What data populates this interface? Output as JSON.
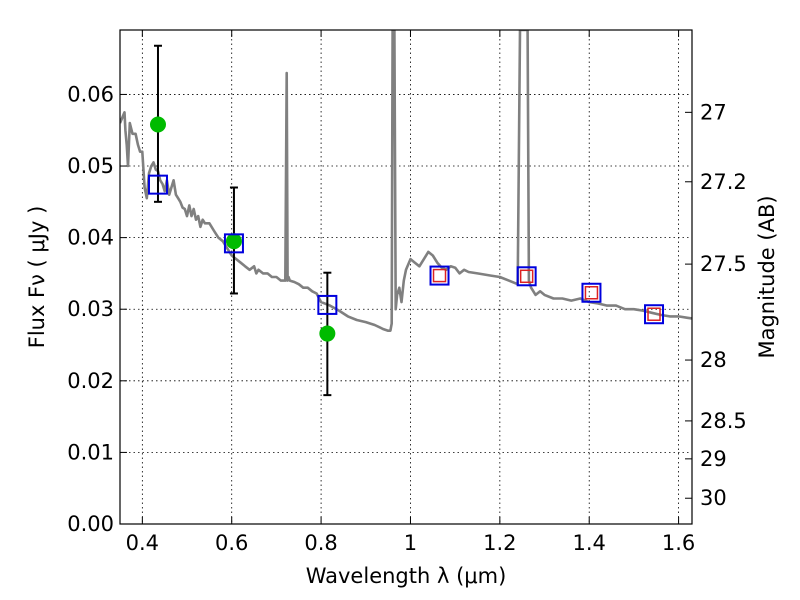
{
  "chart_data": {
    "type": "scatter",
    "xlabel": "Wavelength  λ (μm)",
    "ylabel": "Flux  Fν  ( μJy )",
    "y2label": "Magnitude (AB)",
    "xlim": [
      0.35,
      1.63
    ],
    "ylim": [
      0.0,
      0.069
    ],
    "grid": true,
    "x_ticks": [
      0.4,
      0.6,
      0.8,
      1.0,
      1.2,
      1.4,
      1.6
    ],
    "x_tick_labels": [
      "0.4",
      "0.6",
      "0.8",
      "1",
      "1.2",
      "1.4",
      "1.6"
    ],
    "y_ticks": [
      0.0,
      0.01,
      0.02,
      0.03,
      0.04,
      0.05,
      0.06
    ],
    "y_tick_labels": [
      "0.00",
      "0.01",
      "0.02",
      "0.03",
      "0.04",
      "0.05",
      "0.06"
    ],
    "y2_ticks": [
      {
        "label": "27",
        "flux": 0.0575
      },
      {
        "label": "27.2",
        "flux": 0.0478
      },
      {
        "label": "27.5",
        "flux": 0.0363
      },
      {
        "label": "28",
        "flux": 0.0229
      },
      {
        "label": "28.5",
        "flux": 0.0144
      },
      {
        "label": "29",
        "flux": 0.0091
      },
      {
        "label": "30",
        "flux": 0.0036
      }
    ],
    "series": [
      {
        "name": "model_sed",
        "kind": "line",
        "color": "#808080",
        "x": [
          0.35,
          0.36,
          0.362,
          0.365,
          0.368,
          0.372,
          0.378,
          0.385,
          0.39,
          0.395,
          0.4,
          0.405,
          0.41,
          0.415,
          0.42,
          0.425,
          0.43,
          0.435,
          0.44,
          0.445,
          0.45,
          0.455,
          0.46,
          0.465,
          0.47,
          0.475,
          0.48,
          0.485,
          0.49,
          0.495,
          0.5,
          0.505,
          0.51,
          0.515,
          0.52,
          0.525,
          0.53,
          0.535,
          0.54,
          0.55,
          0.56,
          0.57,
          0.58,
          0.59,
          0.6,
          0.61,
          0.62,
          0.63,
          0.64,
          0.65,
          0.655,
          0.66,
          0.67,
          0.68,
          0.69,
          0.7,
          0.71,
          0.72,
          0.723,
          0.725,
          0.727,
          0.73,
          0.74,
          0.75,
          0.76,
          0.77,
          0.78,
          0.79,
          0.8,
          0.82,
          0.84,
          0.86,
          0.88,
          0.9,
          0.92,
          0.94,
          0.95,
          0.955,
          0.958,
          0.96,
          0.962,
          0.964,
          0.967,
          0.97,
          0.975,
          0.98,
          0.985,
          0.99,
          1.0,
          1.01,
          1.02,
          1.03,
          1.04,
          1.05,
          1.06,
          1.07,
          1.08,
          1.09,
          1.1,
          1.11,
          1.12,
          1.13,
          1.15,
          1.18,
          1.2,
          1.22,
          1.24,
          1.245,
          1.248,
          1.252,
          1.255,
          1.258,
          1.262,
          1.265,
          1.27,
          1.28,
          1.29,
          1.3,
          1.32,
          1.34,
          1.36,
          1.38,
          1.4,
          1.42,
          1.44,
          1.46,
          1.48,
          1.5,
          1.52,
          1.54,
          1.56,
          1.58,
          1.6,
          1.62,
          1.63
        ],
        "y": [
          0.056,
          0.0575,
          0.055,
          0.053,
          0.05,
          0.056,
          0.0545,
          0.0545,
          0.053,
          0.052,
          0.052,
          0.047,
          0.0455,
          0.049,
          0.05,
          0.0505,
          0.0495,
          0.0493,
          0.048,
          0.0475,
          0.0465,
          0.048,
          0.046,
          0.047,
          0.048,
          0.046,
          0.0455,
          0.045,
          0.0442,
          0.044,
          0.043,
          0.0445,
          0.043,
          0.044,
          0.0425,
          0.043,
          0.0415,
          0.0425,
          0.042,
          0.042,
          0.041,
          0.04,
          0.0395,
          0.0385,
          0.0375,
          0.037,
          0.0365,
          0.036,
          0.0355,
          0.036,
          0.035,
          0.0355,
          0.035,
          0.035,
          0.0345,
          0.0345,
          0.034,
          0.034,
          0.063,
          0.034,
          0.0345,
          0.034,
          0.0338,
          0.0335,
          0.033,
          0.033,
          0.0325,
          0.0322,
          0.031,
          0.0305,
          0.0298,
          0.029,
          0.0285,
          0.0282,
          0.0278,
          0.0272,
          0.027,
          0.027,
          0.028,
          0.069,
          0.069,
          0.069,
          0.03,
          0.032,
          0.033,
          0.031,
          0.034,
          0.0355,
          0.037,
          0.0365,
          0.036,
          0.037,
          0.038,
          0.0375,
          0.0365,
          0.0358,
          0.0355,
          0.036,
          0.0358,
          0.035,
          0.0355,
          0.0352,
          0.035,
          0.0347,
          0.0345,
          0.034,
          0.0335,
          0.069,
          0.069,
          0.069,
          0.069,
          0.069,
          0.069,
          0.034,
          0.033,
          0.032,
          0.0325,
          0.032,
          0.0315,
          0.0315,
          0.0312,
          0.0315,
          0.031,
          0.0308,
          0.0305,
          0.0305,
          0.03,
          0.03,
          0.0298,
          0.0295,
          0.0292,
          0.029,
          0.029,
          0.0288,
          0.0287
        ]
      },
      {
        "name": "observed_photometry",
        "kind": "points_with_errors",
        "color": "#00bb00",
        "x": [
          0.435,
          0.605,
          0.814
        ],
        "y": [
          0.0558,
          0.0395,
          0.0266
        ],
        "y_err_low": [
          0.0108,
          0.0073,
          0.0086
        ],
        "y_err_high": [
          0.011,
          0.0075,
          0.0085
        ]
      },
      {
        "name": "model_synthetic_photometry",
        "kind": "open_squares",
        "color": "#0000dd",
        "x": [
          0.435,
          0.605,
          0.814,
          1.065,
          1.26,
          1.405,
          1.545
        ],
        "y": [
          0.0474,
          0.0392,
          0.0306,
          0.0347,
          0.0346,
          0.0323,
          0.0293
        ]
      },
      {
        "name": "predicted_nir_photometry",
        "kind": "open_squares_small",
        "color": "#dd2222",
        "x": [
          1.065,
          1.26,
          1.405,
          1.545
        ],
        "y": [
          0.0347,
          0.0346,
          0.0323,
          0.0293
        ]
      }
    ]
  }
}
